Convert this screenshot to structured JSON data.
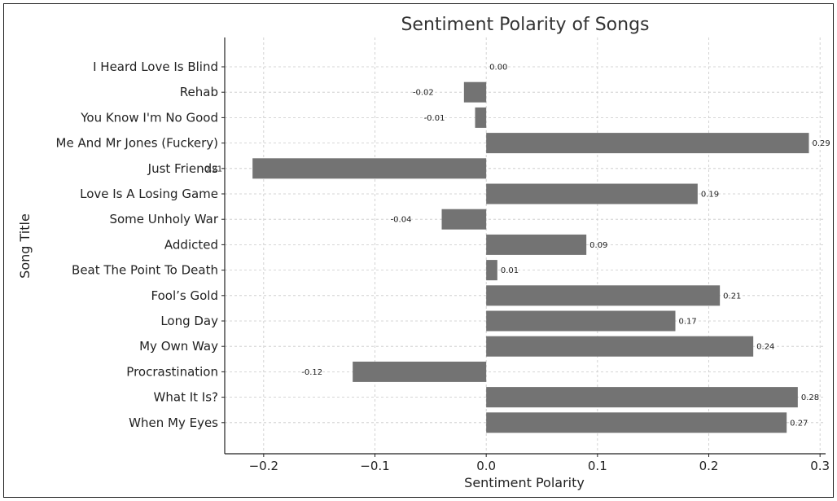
{
  "chart_data": {
    "type": "bar",
    "orientation": "horizontal",
    "title": "Sentiment Polarity of Songs",
    "xlabel": "Sentiment Polarity",
    "ylabel": "Song Title",
    "xlim": [
      -0.235,
      0.305
    ],
    "xticks": [
      -0.2,
      -0.1,
      0.0,
      0.1,
      0.2,
      0.3
    ],
    "xtick_labels": [
      "−0.2",
      "−0.1",
      "0.0",
      "0.1",
      "0.2",
      "0.3"
    ],
    "grid": true,
    "bar_color": "#737373",
    "categories": [
      "I Heard Love Is Blind",
      "Rehab",
      "You Know I'm No Good",
      "Me And Mr Jones (Fuckery)",
      "Just Friends",
      "Love Is A Losing Game",
      "Some Unholy War",
      "Addicted",
      "Beat The Point To Death",
      "Fool’s Gold",
      "Long Day",
      "My Own Way",
      "Procrastination",
      "What It Is?",
      "When My Eyes"
    ],
    "values": [
      0.0,
      -0.02,
      -0.01,
      0.29,
      -0.21,
      0.19,
      -0.04,
      0.09,
      0.01,
      0.21,
      0.17,
      0.24,
      -0.12,
      0.28,
      0.27
    ],
    "value_labels": [
      "0.00",
      "-0.02",
      "-0.01",
      "0.29",
      "-0.21",
      "0.19",
      "-0.04",
      "0.09",
      "0.01",
      "0.21",
      "0.17",
      "0.24",
      "-0.12",
      "0.28",
      "0.27"
    ]
  }
}
